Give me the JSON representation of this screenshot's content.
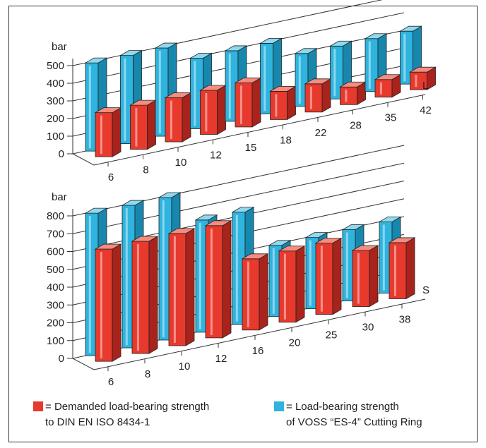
{
  "colors": {
    "red_front": "#e8392d",
    "red_side": "#a8231b",
    "red_top": "#f58c7f",
    "blue_front": "#2eb4de",
    "blue_side": "#1787ad",
    "blue_top": "#8fd9f0"
  },
  "chart_data": [
    {
      "type": "bar",
      "axis_unit": "bar",
      "series_label": "L",
      "categories": [
        "6",
        "8",
        "10",
        "12",
        "15",
        "18",
        "22",
        "28",
        "35",
        "42"
      ],
      "yticks": [
        0,
        100,
        200,
        300,
        400,
        500
      ],
      "ylim": [
        0,
        500
      ],
      "series": [
        {
          "name": "Load-bearing strength of VOSS \"ES-4\" Cutting Ring",
          "values": [
            500,
            500,
            500,
            400,
            400,
            400,
            300,
            300,
            300,
            300
          ]
        },
        {
          "name": "Demanded load-bearing strength to DIN EN ISO 8434-1",
          "values": [
            250,
            250,
            250,
            250,
            250,
            160,
            160,
            100,
            100,
            100
          ]
        }
      ]
    },
    {
      "type": "bar",
      "axis_unit": "bar",
      "series_label": "S",
      "categories": [
        "6",
        "8",
        "10",
        "12",
        "16",
        "20",
        "25",
        "30",
        "38"
      ],
      "yticks": [
        0,
        100,
        200,
        300,
        400,
        500,
        600,
        700,
        800
      ],
      "ylim": [
        0,
        800
      ],
      "series": [
        {
          "name": "Load-bearing strength of VOSS \"ES-4\" Cutting Ring",
          "values": [
            800,
            800,
            800,
            630,
            630,
            400,
            400,
            400,
            400
          ]
        },
        {
          "name": "Demanded load-bearing strength to DIN EN ISO 8434-1",
          "values": [
            630,
            630,
            630,
            630,
            400,
            400,
            400,
            315,
            315
          ]
        }
      ]
    }
  ],
  "legend": {
    "red_line1": "Demanded load-bearing strength",
    "red_line2": "to DIN EN ISO 8434-1",
    "blue_line1": "Load-bearing strength",
    "blue_line2": "of VOSS “ES-4” Cutting Ring",
    "equals": "="
  }
}
